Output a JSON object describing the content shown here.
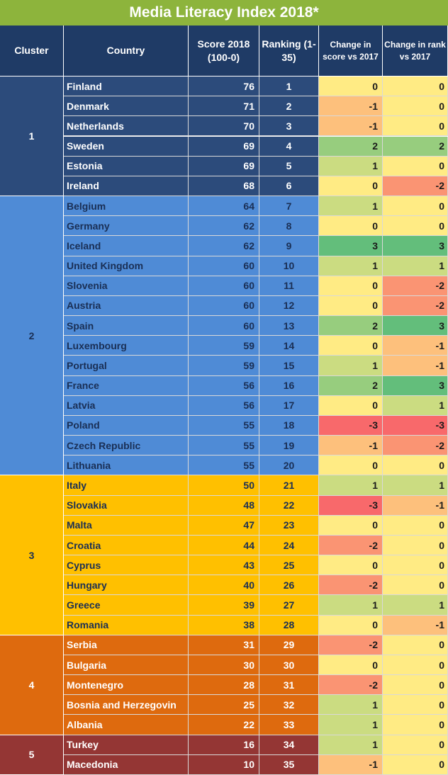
{
  "title": "Media Literacy Index 2018*",
  "header": [
    "Cluster",
    "Country",
    "Score 2018 (100-0)",
    "Ranking (1-35)",
    "Change in score vs 2017",
    "Change in rank vs 2017"
  ],
  "clusters": [
    {
      "label": "1",
      "color": "#2c4b7b",
      "text_color": "#ffffff",
      "rows": [
        [
          "Finland",
          76,
          1,
          0,
          0
        ],
        [
          "Denmark",
          71,
          2,
          -1,
          0
        ],
        [
          "Netherlands",
          70,
          3,
          -1,
          0
        ],
        [
          "Sweden",
          69,
          4,
          2,
          2
        ],
        [
          "Estonia",
          69,
          5,
          1,
          0
        ],
        [
          "Ireland",
          68,
          6,
          0,
          -2
        ]
      ]
    },
    {
      "label": "2",
      "color": "#4f8bd6",
      "text_color": "#1a2f55",
      "rows": [
        [
          "Belgium",
          64,
          7,
          1,
          0
        ],
        [
          "Germany",
          62,
          8,
          0,
          0
        ],
        [
          "Iceland",
          62,
          9,
          3,
          3
        ],
        [
          "United Kingdom",
          60,
          10,
          1,
          1
        ],
        [
          "Slovenia",
          60,
          11,
          0,
          -2
        ],
        [
          "Austria",
          60,
          12,
          0,
          -2
        ],
        [
          "Spain",
          60,
          13,
          2,
          3
        ],
        [
          "Luxembourg",
          59,
          14,
          0,
          -1
        ],
        [
          "Portugal",
          59,
          15,
          1,
          -1
        ],
        [
          "France",
          56,
          16,
          2,
          3
        ],
        [
          "Latvia",
          56,
          17,
          0,
          1
        ],
        [
          "Poland",
          55,
          18,
          -3,
          -3
        ],
        [
          "Czech Republic",
          55,
          19,
          -1,
          -2
        ],
        [
          "Lithuania",
          55,
          20,
          0,
          0
        ]
      ]
    },
    {
      "label": "3",
      "color": "#ffc000",
      "text_color": "#1a2f55",
      "rows": [
        [
          "Italy",
          50,
          21,
          1,
          1
        ],
        [
          "Slovakia",
          48,
          22,
          -3,
          -1
        ],
        [
          "Malta",
          47,
          23,
          0,
          0
        ],
        [
          "Croatia",
          44,
          24,
          -2,
          0
        ],
        [
          "Cyprus",
          43,
          25,
          0,
          0
        ],
        [
          "Hungary",
          40,
          26,
          -2,
          0
        ],
        [
          "Greece",
          39,
          27,
          1,
          1
        ],
        [
          "Romania",
          38,
          28,
          0,
          -1
        ]
      ]
    },
    {
      "label": "4",
      "color": "#de6a0e",
      "text_color": "#ffffff",
      "rows": [
        [
          "Serbia",
          31,
          29,
          -2,
          0
        ],
        [
          "Bulgaria",
          30,
          30,
          0,
          0
        ],
        [
          "Montenegro",
          28,
          31,
          -2,
          0
        ],
        [
          "Bosnia and Herzegovin",
          25,
          32,
          1,
          0
        ],
        [
          "Albania",
          22,
          33,
          1,
          0
        ]
      ]
    },
    {
      "label": "5",
      "color": "#943634",
      "text_color": "#ffffff",
      "rows": [
        [
          "Turkey",
          16,
          34,
          1,
          0
        ],
        [
          "Macedonia",
          10,
          35,
          -1,
          0
        ]
      ]
    }
  ]
}
